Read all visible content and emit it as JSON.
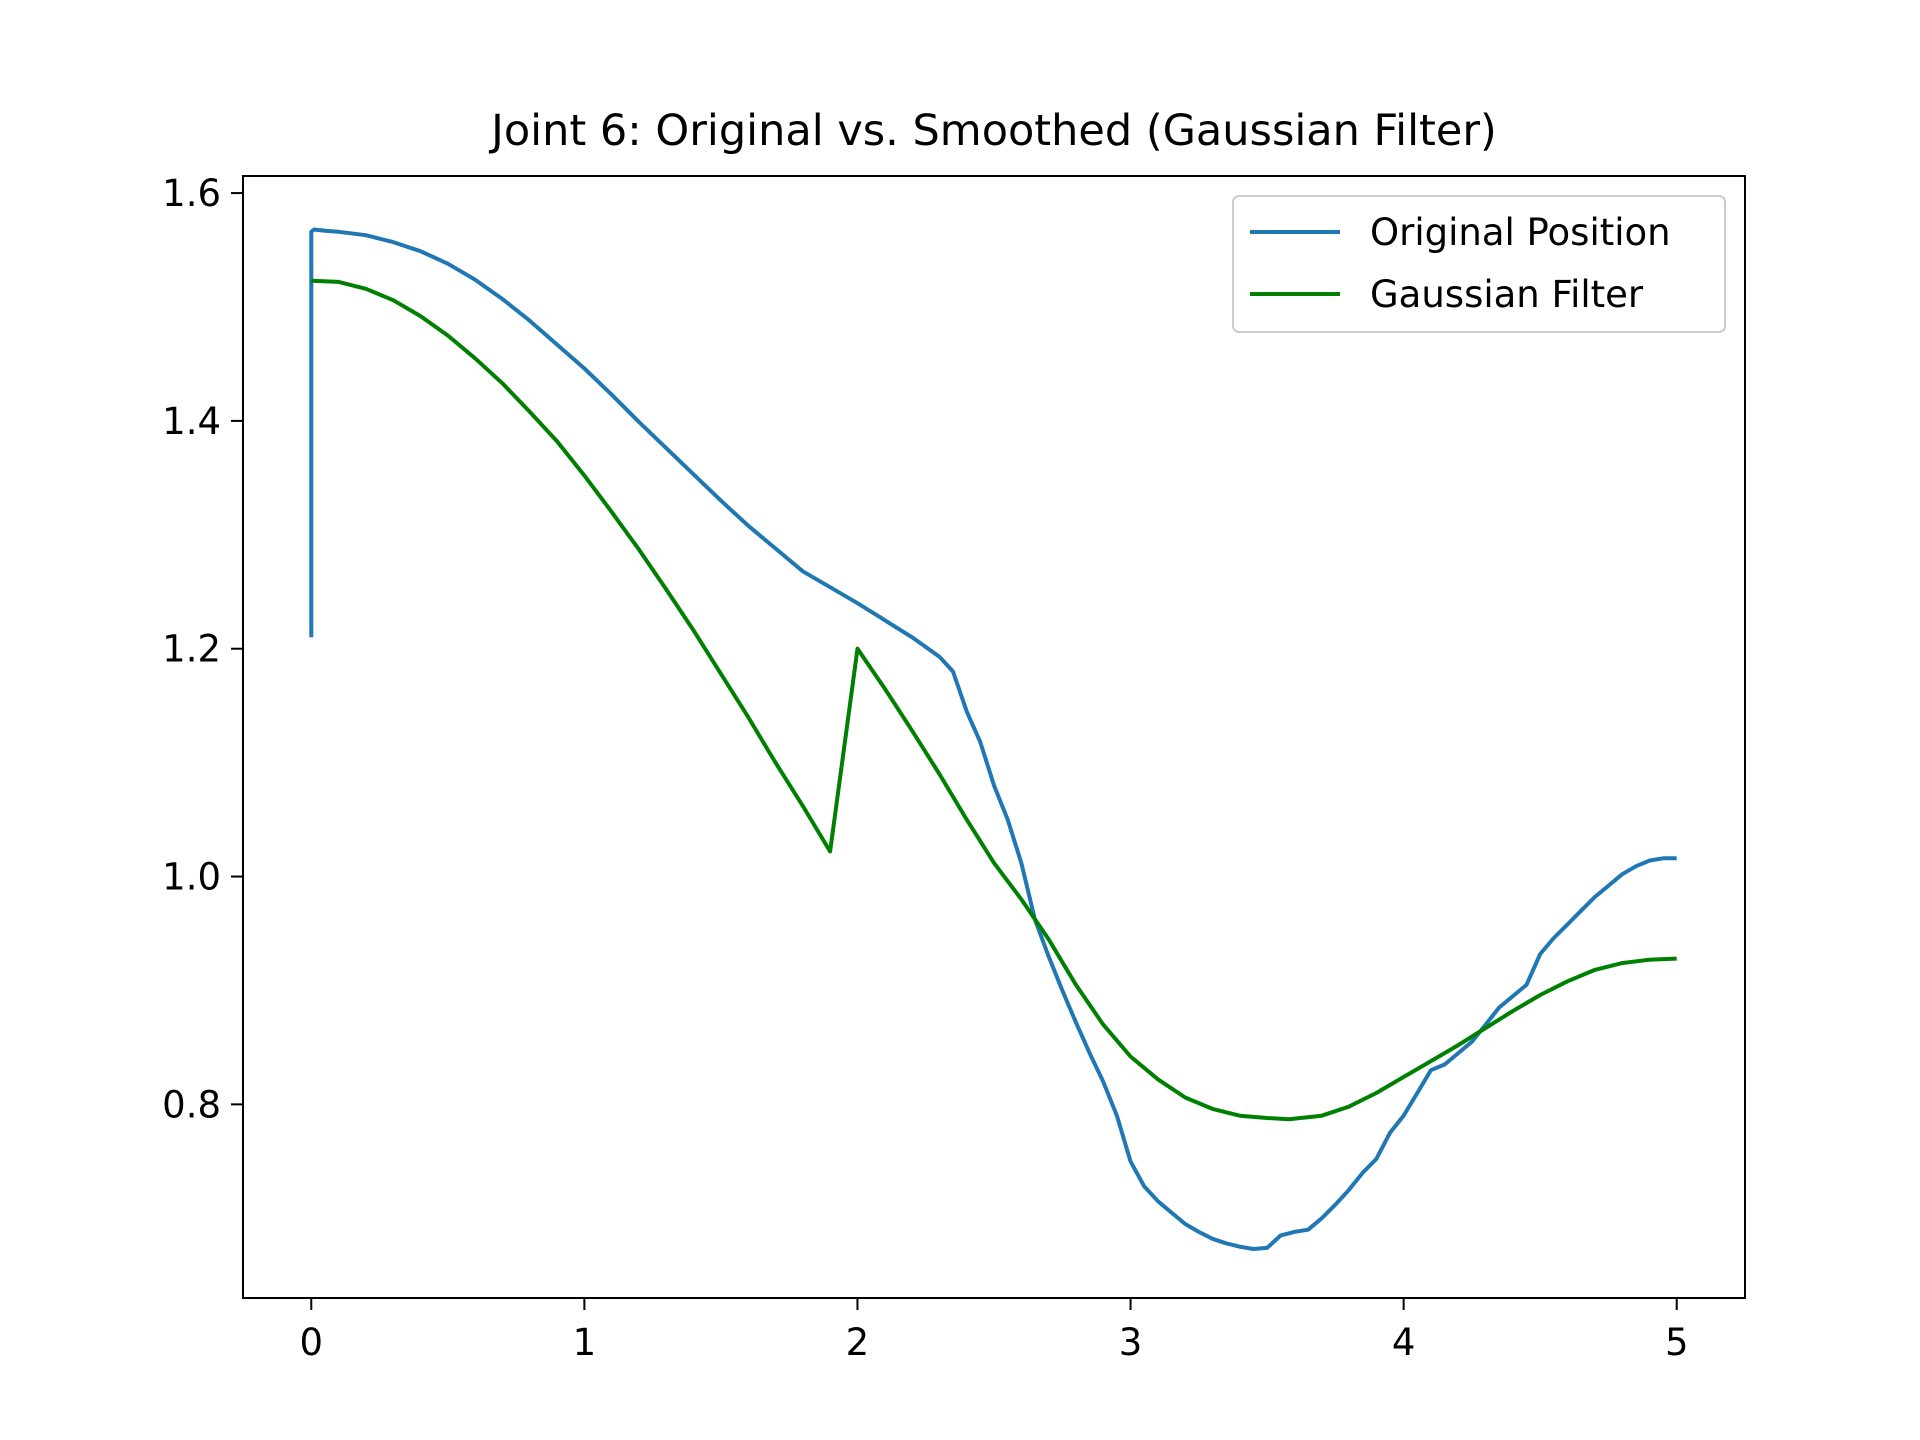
{
  "chart_data": {
    "type": "line",
    "title": "Joint 6: Original vs. Smoothed (Gaussian Filter)",
    "xlabel": "",
    "ylabel": "",
    "xlim": [
      -0.25,
      5.25
    ],
    "ylim": [
      0.63,
      1.615
    ],
    "x_ticks": [
      0,
      1,
      2,
      3,
      4,
      5
    ],
    "x_tick_labels": [
      "0",
      "1",
      "2",
      "3",
      "4",
      "5"
    ],
    "y_ticks": [
      0.8,
      1.0,
      1.2,
      1.4,
      1.6
    ],
    "y_tick_labels": [
      "0.8",
      "1.0",
      "1.2",
      "1.4",
      "1.6"
    ],
    "grid": false,
    "legend_position": "top-right",
    "series": [
      {
        "name": "Original Position",
        "color": "#1f77b4",
        "points": [
          [
            0.0,
            1.21
          ],
          [
            0.0,
            1.566
          ],
          [
            0.01,
            1.568
          ],
          [
            0.05,
            1.567
          ],
          [
            0.1,
            1.566
          ],
          [
            0.2,
            1.563
          ],
          [
            0.3,
            1.557
          ],
          [
            0.4,
            1.549
          ],
          [
            0.5,
            1.538
          ],
          [
            0.6,
            1.524
          ],
          [
            0.7,
            1.507
          ],
          [
            0.8,
            1.488
          ],
          [
            0.9,
            1.467
          ],
          [
            1.0,
            1.446
          ],
          [
            1.1,
            1.423
          ],
          [
            1.2,
            1.399
          ],
          [
            1.3,
            1.376
          ],
          [
            1.4,
            1.353
          ],
          [
            1.5,
            1.33
          ],
          [
            1.6,
            1.308
          ],
          [
            1.7,
            1.288
          ],
          [
            1.8,
            1.268
          ],
          [
            1.9,
            1.254
          ],
          [
            2.0,
            1.24
          ],
          [
            2.1,
            1.225
          ],
          [
            2.2,
            1.21
          ],
          [
            2.3,
            1.193
          ],
          [
            2.35,
            1.18
          ],
          [
            2.4,
            1.145
          ],
          [
            2.45,
            1.118
          ],
          [
            2.5,
            1.08
          ],
          [
            2.55,
            1.05
          ],
          [
            2.6,
            1.012
          ],
          [
            2.65,
            0.962
          ],
          [
            2.7,
            0.93
          ],
          [
            2.75,
            0.9
          ],
          [
            2.8,
            0.872
          ],
          [
            2.85,
            0.845
          ],
          [
            2.9,
            0.82
          ],
          [
            2.95,
            0.79
          ],
          [
            3.0,
            0.75
          ],
          [
            3.05,
            0.728
          ],
          [
            3.1,
            0.715
          ],
          [
            3.15,
            0.705
          ],
          [
            3.2,
            0.695
          ],
          [
            3.25,
            0.688
          ],
          [
            3.3,
            0.682
          ],
          [
            3.35,
            0.678
          ],
          [
            3.4,
            0.675
          ],
          [
            3.45,
            0.673
          ],
          [
            3.5,
            0.674
          ],
          [
            3.55,
            0.685
          ],
          [
            3.6,
            0.688
          ],
          [
            3.65,
            0.69
          ],
          [
            3.7,
            0.7
          ],
          [
            3.75,
            0.712
          ],
          [
            3.8,
            0.725
          ],
          [
            3.85,
            0.74
          ],
          [
            3.9,
            0.752
          ],
          [
            3.95,
            0.775
          ],
          [
            4.0,
            0.79
          ],
          [
            4.05,
            0.81
          ],
          [
            4.1,
            0.83
          ],
          [
            4.15,
            0.835
          ],
          [
            4.2,
            0.845
          ],
          [
            4.25,
            0.855
          ],
          [
            4.3,
            0.87
          ],
          [
            4.35,
            0.885
          ],
          [
            4.4,
            0.895
          ],
          [
            4.45,
            0.905
          ],
          [
            4.5,
            0.932
          ],
          [
            4.55,
            0.946
          ],
          [
            4.6,
            0.958
          ],
          [
            4.65,
            0.97
          ],
          [
            4.7,
            0.982
          ],
          [
            4.75,
            0.992
          ],
          [
            4.8,
            1.002
          ],
          [
            4.85,
            1.009
          ],
          [
            4.9,
            1.014
          ],
          [
            4.95,
            1.016
          ],
          [
            5.0,
            1.016
          ]
        ]
      },
      {
        "name": "Gaussian Filter",
        "color": "#008000",
        "points": [
          [
            0.0,
            1.523
          ],
          [
            0.1,
            1.522
          ],
          [
            0.2,
            1.516
          ],
          [
            0.3,
            1.506
          ],
          [
            0.4,
            1.492
          ],
          [
            0.5,
            1.475
          ],
          [
            0.6,
            1.455
          ],
          [
            0.7,
            1.433
          ],
          [
            0.8,
            1.408
          ],
          [
            0.9,
            1.382
          ],
          [
            1.0,
            1.352
          ],
          [
            1.1,
            1.32
          ],
          [
            1.2,
            1.287
          ],
          [
            1.3,
            1.252
          ],
          [
            1.4,
            1.216
          ],
          [
            1.5,
            1.178
          ],
          [
            1.6,
            1.14
          ],
          [
            1.7,
            1.1
          ],
          [
            1.8,
            1.062
          ],
          [
            1.9,
            1.022
          ],
          [
            2.0,
            1.2
          ],
          [
            2.1,
            1.165
          ],
          [
            2.2,
            1.128
          ],
          [
            2.3,
            1.09
          ],
          [
            2.4,
            1.05
          ],
          [
            2.5,
            1.012
          ],
          [
            2.6,
            0.98
          ],
          [
            2.7,
            0.945
          ],
          [
            2.8,
            0.905
          ],
          [
            2.9,
            0.87
          ],
          [
            3.0,
            0.842
          ],
          [
            3.1,
            0.822
          ],
          [
            3.2,
            0.806
          ],
          [
            3.3,
            0.796
          ],
          [
            3.4,
            0.79
          ],
          [
            3.5,
            0.788
          ],
          [
            3.58,
            0.787
          ],
          [
            3.7,
            0.79
          ],
          [
            3.8,
            0.798
          ],
          [
            3.9,
            0.81
          ],
          [
            4.0,
            0.824
          ],
          [
            4.1,
            0.838
          ],
          [
            4.2,
            0.852
          ],
          [
            4.3,
            0.867
          ],
          [
            4.4,
            0.882
          ],
          [
            4.5,
            0.896
          ],
          [
            4.6,
            0.908
          ],
          [
            4.7,
            0.918
          ],
          [
            4.8,
            0.924
          ],
          [
            4.9,
            0.927
          ],
          [
            5.0,
            0.928
          ]
        ]
      }
    ]
  }
}
